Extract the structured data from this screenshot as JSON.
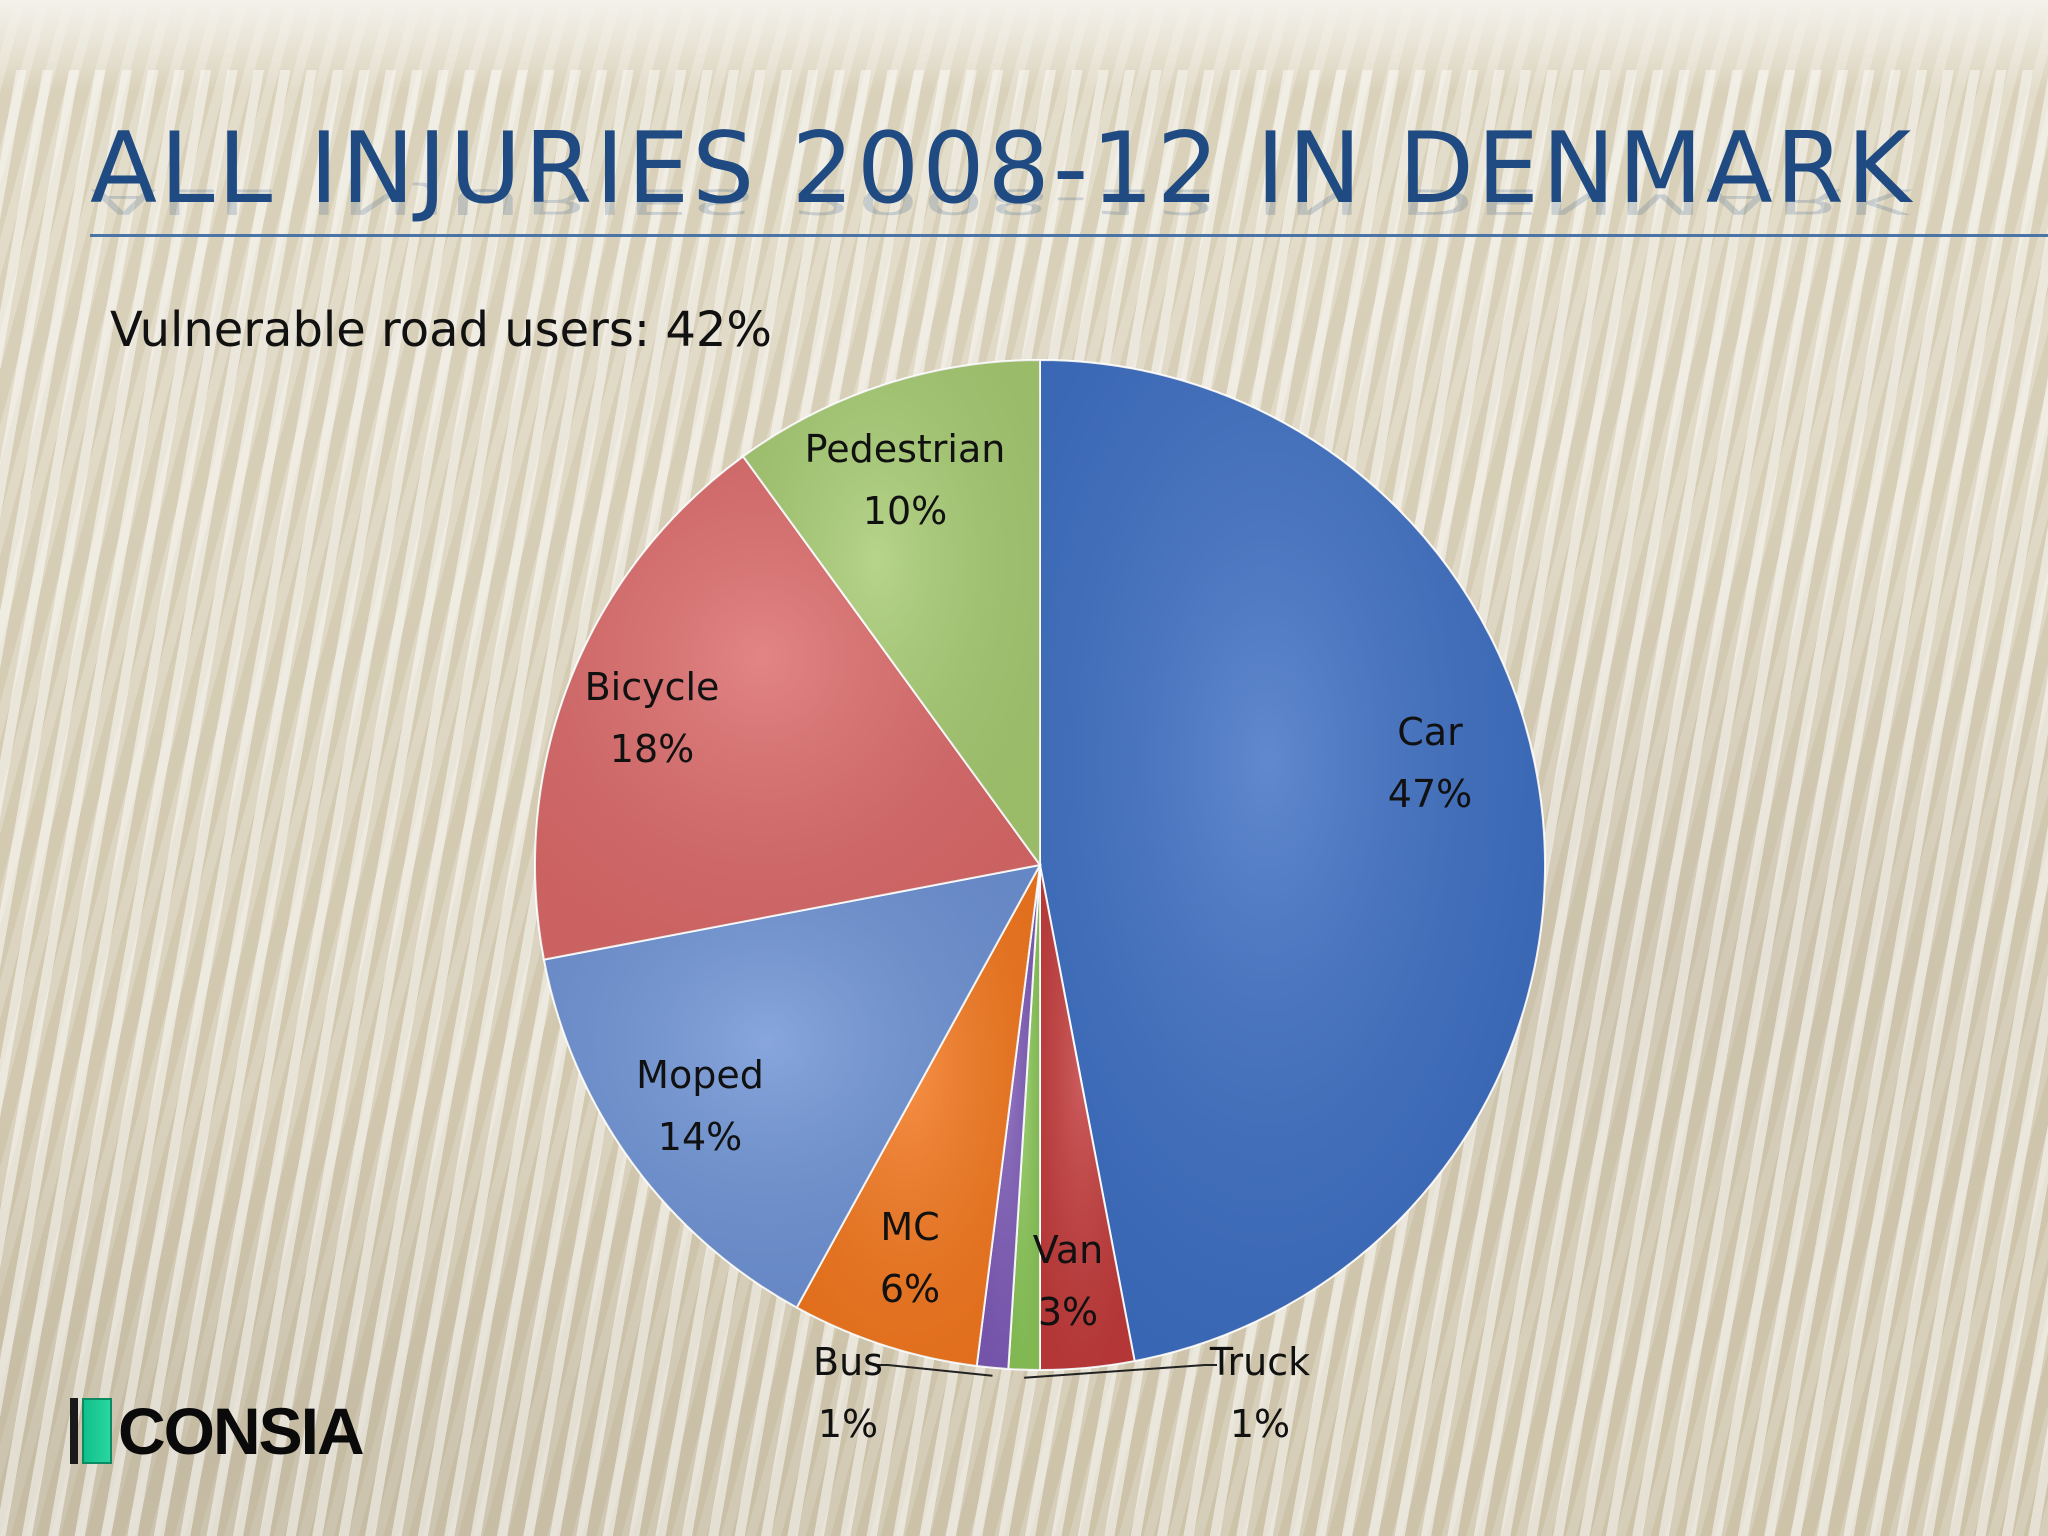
{
  "slide": {
    "title": "ALL INJURIES 2008-12 IN DENMARK",
    "subtitle": "Vulnerable road users: 42%",
    "logo_text": "CONSIA"
  },
  "chart_data": {
    "type": "pie",
    "title": "ALL INJURIES 2008-12 IN DENMARK",
    "start": "top, clockwise",
    "slices": [
      {
        "name": "Car",
        "value": 47,
        "label": "47%",
        "color": "#3d6fc4"
      },
      {
        "name": "Van",
        "value": 3,
        "label": "3%",
        "color": "#c43b3b"
      },
      {
        "name": "Truck",
        "value": 1,
        "label": "1%",
        "color": "#8cc859"
      },
      {
        "name": "Bus",
        "value": 1,
        "label": "1%",
        "color": "#7e5bb8"
      },
      {
        "name": "MC",
        "value": 6,
        "label": "6%",
        "color": "#f5781e"
      },
      {
        "name": "Moped",
        "value": 14,
        "label": "14%",
        "color": "#6e93d6"
      },
      {
        "name": "Bicycle",
        "value": 18,
        "label": "18%",
        "color": "#dd6a6a"
      },
      {
        "name": "Pedestrian",
        "value": 10,
        "label": "10%",
        "color": "#a7cc72"
      }
    ]
  }
}
